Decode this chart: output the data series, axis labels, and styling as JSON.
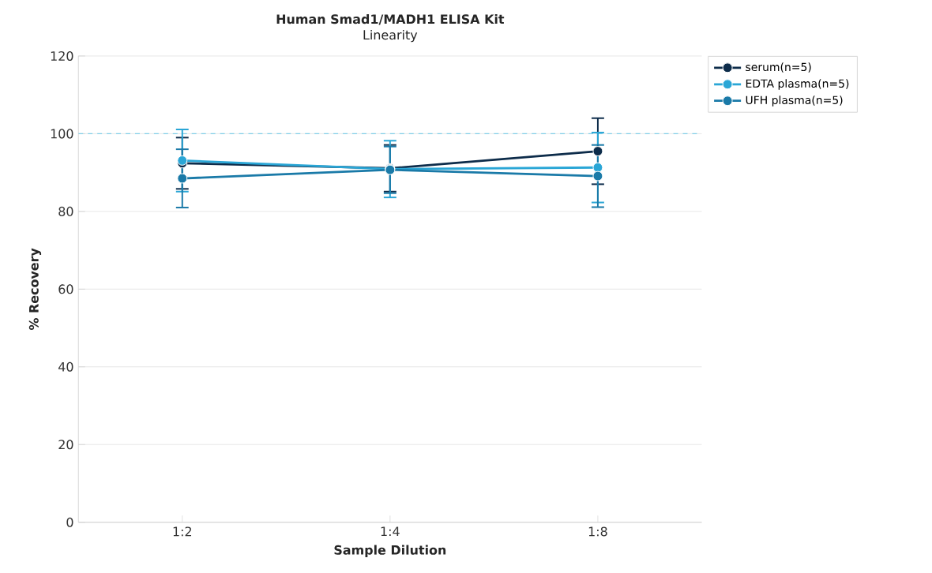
{
  "chart_data": {
    "type": "line",
    "title": "Human Smad1/MADH1 ELISA Kit",
    "subtitle": "Linearity",
    "xlabel": "Sample Dilution",
    "ylabel": "% Recovery",
    "categories": [
      "1:2",
      "1:4",
      "1:8"
    ],
    "series": [
      {
        "name": "serum(n=5)",
        "color": "#0d2c4a",
        "values": [
          92.4,
          91.1,
          95.5
        ],
        "errors": [
          6.6,
          6,
          8.5
        ]
      },
      {
        "name": "EDTA plasma(n=5)",
        "color": "#2aa6d6",
        "values": [
          93.1,
          90.9,
          91.3
        ],
        "errors": [
          8,
          7.3,
          9
        ]
      },
      {
        "name": "UFH plasma(n=5)",
        "color": "#1a7aa8",
        "values": [
          88.5,
          90.7,
          89.1
        ],
        "errors": [
          7.5,
          6,
          8
        ]
      }
    ],
    "ylim": [
      0,
      120
    ],
    "yticks": [
      0,
      20,
      40,
      60,
      80,
      100,
      120
    ],
    "ref_lines": [
      {
        "axis": "y",
        "value": 100,
        "color": "#7fcde8",
        "line_style": "dashed"
      }
    ],
    "grid": "y",
    "legend": "top right",
    "marker": "circle",
    "line_style": "solid"
  }
}
